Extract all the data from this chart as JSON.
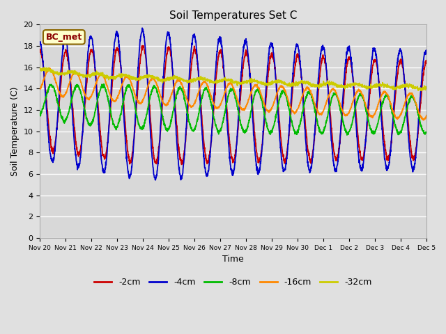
{
  "title": "Soil Temperatures Set C",
  "xlabel": "Time",
  "ylabel": "Soil Temperature (C)",
  "ylim": [
    0,
    20
  ],
  "annotation": "BC_met",
  "legend_labels": [
    "-2cm",
    "-4cm",
    "-8cm",
    "-16cm",
    "-32cm"
  ],
  "legend_colors": [
    "#cc0000",
    "#0000cc",
    "#00bb00",
    "#ff8800",
    "#cccc00"
  ],
  "background_color": "#e0e0e0",
  "plot_bg_color": "#d8d8d8",
  "grid_color": "#ffffff",
  "num_days": 15,
  "sample_rate": 144,
  "tick_labels": [
    "Nov 20",
    "Nov 21",
    "Nov 22",
    "Nov 23",
    "Nov 24",
    "Nov 25",
    "Nov 26",
    "Nov 27",
    "Nov 28",
    "Nov 29",
    "Nov 30",
    "Dec 1",
    "Dec 2",
    "Dec 3",
    "Dec 4",
    "Dec 5"
  ]
}
